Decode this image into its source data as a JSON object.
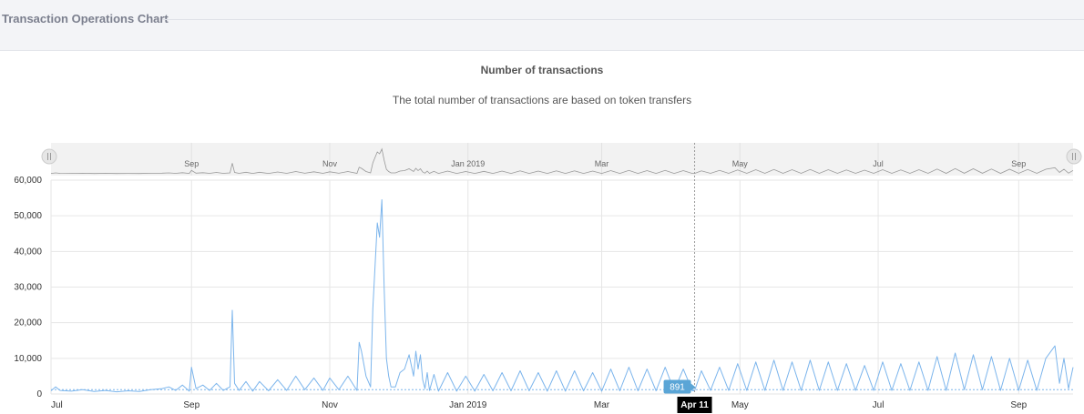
{
  "panel": {
    "title": "Transaction Operations Chart"
  },
  "chart_data": {
    "type": "line",
    "title": "Number of transactions",
    "subtitle": "The total number of transactions are based on token transfers",
    "xlabel": "",
    "ylabel": "",
    "x_range": [
      "2018-07-01",
      "2019-09-25"
    ],
    "ylim": [
      0,
      60000
    ],
    "y_ticks": [
      0,
      10000,
      20000,
      30000,
      40000,
      50000,
      60000
    ],
    "y_tick_labels": [
      "0",
      "10,000",
      "20,000",
      "30,000",
      "40,000",
      "50,000",
      "60,000"
    ],
    "x_ticks": [
      "2018-07-01",
      "2018-09-01",
      "2018-11-01",
      "2019-01-01",
      "2019-03-01",
      "2019-05-01",
      "2019-07-01",
      "2019-09-01"
    ],
    "x_tick_labels": [
      "Jul",
      "Sep",
      "Nov",
      "Jan 2019",
      "Mar",
      "May",
      "Jul",
      "Sep"
    ],
    "navigator_tick_labels": [
      "Sep",
      "Nov",
      "Jan 2019",
      "Mar",
      "May",
      "Jul",
      "Sep"
    ],
    "grid": true,
    "legend": "none",
    "series_color": "#7cb5ec",
    "reference_line_y": 1200,
    "tooltip": {
      "date_label": "Apr 11",
      "value_label": "891"
    },
    "series": [
      {
        "x": [
          "2018-07-01",
          "2018-07-03",
          "2018-07-05",
          "2018-07-10",
          "2018-07-15",
          "2018-07-20",
          "2018-07-25",
          "2018-07-30",
          "2018-08-04",
          "2018-08-09",
          "2018-08-14",
          "2018-08-19",
          "2018-08-22",
          "2018-08-25",
          "2018-08-28",
          "2018-08-31",
          "2018-09-01",
          "2018-09-03",
          "2018-09-06",
          "2018-09-09",
          "2018-09-12",
          "2018-09-15",
          "2018-09-18",
          "2018-09-19",
          "2018-09-20",
          "2018-09-22",
          "2018-09-25",
          "2018-09-28",
          "2018-10-01",
          "2018-10-05",
          "2018-10-09",
          "2018-10-13",
          "2018-10-17",
          "2018-10-21",
          "2018-10-25",
          "2018-10-29",
          "2018-11-01",
          "2018-11-05",
          "2018-11-09",
          "2018-11-13",
          "2018-11-14",
          "2018-11-15",
          "2018-11-17",
          "2018-11-19",
          "2018-11-20",
          "2018-11-22",
          "2018-11-23",
          "2018-11-24",
          "2018-11-25",
          "2018-11-26",
          "2018-11-27",
          "2018-11-28",
          "2018-11-30",
          "2018-12-02",
          "2018-12-04",
          "2018-12-06",
          "2018-12-08",
          "2018-12-09",
          "2018-12-10",
          "2018-12-11",
          "2018-12-12",
          "2018-12-13",
          "2018-12-14",
          "2018-12-15",
          "2018-12-17",
          "2018-12-19",
          "2018-12-23",
          "2018-12-27",
          "2018-12-31",
          "2019-01-04",
          "2019-01-08",
          "2019-01-12",
          "2019-01-16",
          "2019-01-20",
          "2019-01-24",
          "2019-01-28",
          "2019-02-01",
          "2019-02-05",
          "2019-02-09",
          "2019-02-13",
          "2019-02-17",
          "2019-02-21",
          "2019-02-25",
          "2019-03-01",
          "2019-03-05",
          "2019-03-09",
          "2019-03-13",
          "2019-03-17",
          "2019-03-21",
          "2019-03-25",
          "2019-03-29",
          "2019-04-02",
          "2019-04-06",
          "2019-04-10",
          "2019-04-11",
          "2019-04-14",
          "2019-04-18",
          "2019-04-22",
          "2019-04-26",
          "2019-04-30",
          "2019-05-04",
          "2019-05-08",
          "2019-05-12",
          "2019-05-16",
          "2019-05-20",
          "2019-05-24",
          "2019-05-28",
          "2019-06-01",
          "2019-06-05",
          "2019-06-09",
          "2019-06-13",
          "2019-06-17",
          "2019-06-21",
          "2019-06-25",
          "2019-06-29",
          "2019-07-03",
          "2019-07-07",
          "2019-07-11",
          "2019-07-15",
          "2019-07-19",
          "2019-07-23",
          "2019-07-27",
          "2019-07-31",
          "2019-08-04",
          "2019-08-08",
          "2019-08-12",
          "2019-08-16",
          "2019-08-20",
          "2019-08-24",
          "2019-08-28",
          "2019-09-01",
          "2019-09-05",
          "2019-09-09",
          "2019-09-13",
          "2019-09-17",
          "2019-09-19",
          "2019-09-21",
          "2019-09-23",
          "2019-09-25"
        ],
        "y": [
          900,
          2000,
          1000,
          800,
          1200,
          700,
          1000,
          600,
          900,
          700,
          1200,
          1500,
          2000,
          1000,
          2500,
          800,
          7500,
          1500,
          2500,
          1000,
          3000,
          1000,
          2000,
          23500,
          3000,
          1000,
          3500,
          800,
          3500,
          900,
          4000,
          1000,
          5000,
          1200,
          4500,
          1000,
          4500,
          1200,
          5000,
          1000,
          14500,
          12000,
          5000,
          2000,
          24000,
          48000,
          44000,
          54500,
          30000,
          10000,
          5000,
          2000,
          2000,
          6000,
          7000,
          11000,
          5000,
          12000,
          7000,
          11000,
          4000,
          1500,
          6000,
          1000,
          5500,
          800,
          6000,
          800,
          5000,
          800,
          5500,
          900,
          6000,
          900,
          6500,
          900,
          6000,
          800,
          6500,
          800,
          6500,
          900,
          6000,
          800,
          7000,
          900,
          7500,
          900,
          7000,
          900,
          7500,
          900,
          7000,
          900,
          891,
          6500,
          1000,
          7500,
          1000,
          8500,
          1000,
          9000,
          1000,
          9500,
          1000,
          9000,
          1000,
          9500,
          1000,
          9000,
          1000,
          8500,
          1000,
          8000,
          1000,
          9000,
          1000,
          8500,
          1000,
          9000,
          1000,
          10500,
          1000,
          11500,
          1200,
          11000,
          1200,
          10500,
          1000,
          10000,
          1000,
          9500,
          1000,
          10000,
          13500,
          3000,
          10000,
          1500,
          7500
        ]
      }
    ]
  }
}
